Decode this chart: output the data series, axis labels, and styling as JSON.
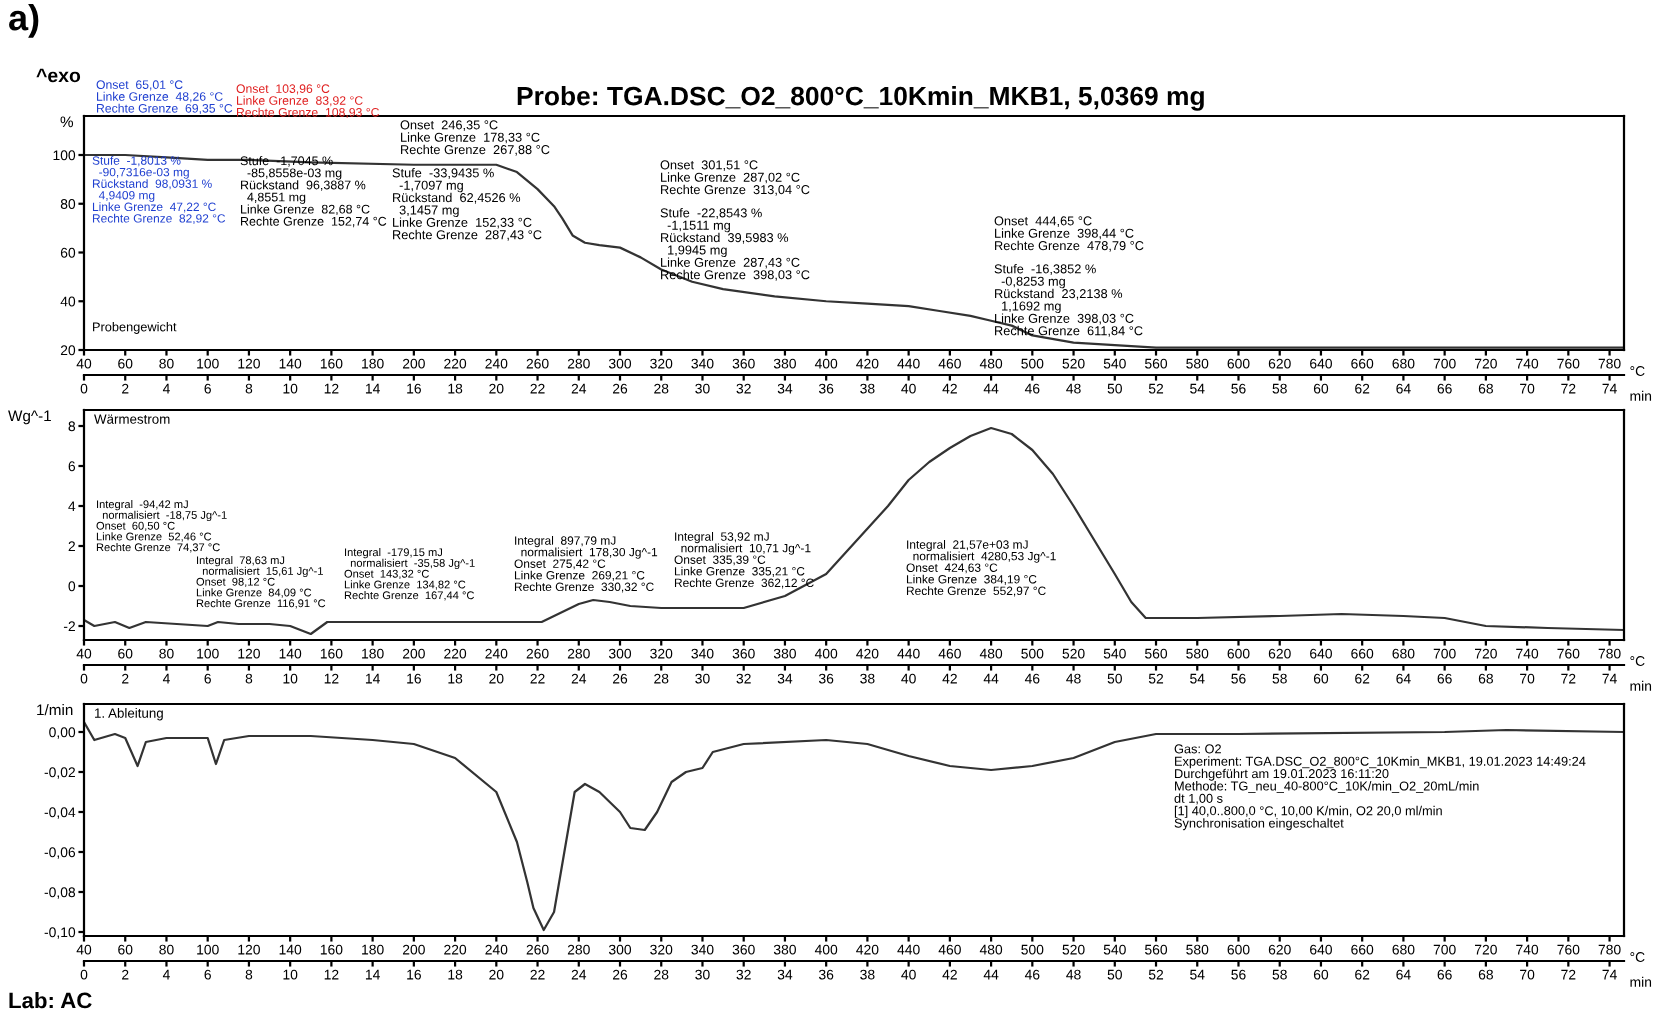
{
  "chart_data": [
    {
      "type": "line",
      "title": "Probe: TGA.DSC_O2_800°C_10Kmin_MKB1, 5,0369 mg",
      "ylabel": "%",
      "xlabel": "°C",
      "x2label": "min",
      "x": [
        40,
        60,
        80,
        100,
        105,
        120,
        150,
        200,
        240,
        250,
        260,
        268,
        272,
        277,
        283,
        290,
        300,
        310,
        320,
        335,
        350,
        375,
        400,
        420,
        440,
        455,
        470,
        480,
        490,
        500,
        520,
        540,
        560,
        611,
        700,
        787
      ],
      "series": [
        {
          "color": "#333333",
          "values": [
            100,
            100,
            99,
            98,
            98,
            98,
            97,
            96,
            96,
            93,
            86,
            79,
            74,
            67,
            64,
            63,
            62,
            58,
            53,
            48,
            45,
            42,
            40,
            39,
            38,
            36,
            34,
            32,
            30,
            26,
            23,
            22,
            21,
            21,
            21,
            21
          ]
        }
      ],
      "xlim": [
        40,
        787
      ],
      "xticks": [
        40,
        60,
        80,
        100,
        120,
        140,
        160,
        180,
        200,
        220,
        240,
        260,
        280,
        300,
        320,
        340,
        360,
        380,
        400,
        420,
        440,
        460,
        480,
        500,
        520,
        540,
        560,
        580,
        600,
        620,
        640,
        660,
        680,
        700,
        720,
        740,
        760,
        780
      ],
      "x2lim": [
        0,
        74.7
      ],
      "x2ticks": [
        0,
        2,
        4,
        6,
        8,
        10,
        12,
        14,
        16,
        18,
        20,
        22,
        24,
        26,
        28,
        30,
        32,
        34,
        36,
        38,
        40,
        42,
        44,
        46,
        48,
        50,
        52,
        54,
        56,
        58,
        60,
        62,
        64,
        66,
        68,
        70,
        72,
        74
      ],
      "ylim": [
        20,
        116
      ],
      "yticks": [
        20,
        40,
        60,
        80,
        100
      ],
      "grid": false,
      "legend": false,
      "annotations": [
        "a)",
        "^exo",
        "Onset  65,01 °C\nLinke Grenze  48,26 °C\nRechte Grenze  69,35 °C",
        "Onset  103,96 °C\nLinke Grenze  83,92 °C\nRechte Grenze  108,93 °C",
        "Onset  246,35 °C\nLinke Grenze  178,33 °C\nRechte Grenze  267,88 °C",
        "Stufe  -1,8013 %\n  -90,7316e-03 mg\nRückstand  98,0931 %\n  4,9409 mg\nLinke Grenze  47,22 °C\nRechte Grenze  82,92 °C",
        "Stufe  -1,7045 %\n  -85,8558e-03 mg\nRückstand  96,3887 %\n  4,8551 mg\nLinke Grenze  82,68 °C\nRechte Grenze  152,74 °C",
        "Stufe  -33,9435 %\n  -1,7097 mg\nRückstand  62,4526 %\n  3,1457 mg\nLinke Grenze  152,33 °C\nRechte Grenze  287,43 °C",
        "Onset  301,51 °C\nLinke Grenze  287,02 °C\nRechte Grenze  313,04 °C",
        "Stufe  -22,8543 %\n  -1,1511 mg\nRückstand  39,5983 %\n  1,9945 mg\nLinke Grenze  287,43 °C\nRechte Grenze  398,03 °C",
        "Onset  444,65 °C\nLinke Grenze  398,44 °C\nRechte Grenze  478,79 °C",
        "Stufe  -16,3852 %\n  -0,8253 mg\nRückstand  23,2138 %\n  1,1692 mg\nLinke Grenze  398,03 °C\nRechte Grenze  611,84 °C",
        "Probengewicht"
      ]
    },
    {
      "type": "line",
      "ylabel": "Wg^-1",
      "xlabel": "°C",
      "x2label": "min",
      "x": [
        40,
        45,
        55,
        62,
        70,
        85,
        100,
        105,
        115,
        130,
        140,
        150,
        158,
        170,
        200,
        240,
        262,
        270,
        280,
        287,
        295,
        305,
        320,
        340,
        360,
        380,
        400,
        415,
        430,
        440,
        450,
        460,
        470,
        480,
        490,
        500,
        510,
        520,
        530,
        540,
        548,
        555,
        580,
        620,
        650,
        680,
        700,
        720,
        750,
        787
      ],
      "series": [
        {
          "color": "#333333",
          "values": [
            -1.7,
            -2.0,
            -1.8,
            -2.1,
            -1.8,
            -1.9,
            -2.0,
            -1.8,
            -1.9,
            -1.9,
            -2.0,
            -2.4,
            -1.8,
            -1.8,
            -1.8,
            -1.8,
            -1.8,
            -1.4,
            -0.9,
            -0.7,
            -0.8,
            -1.0,
            -1.1,
            -1.1,
            -1.1,
            -0.5,
            0.6,
            2.3,
            4.0,
            5.3,
            6.2,
            6.9,
            7.5,
            7.9,
            7.6,
            6.8,
            5.6,
            4.0,
            2.3,
            0.6,
            -0.8,
            -1.6,
            -1.6,
            -1.5,
            -1.4,
            -1.5,
            -1.6,
            -2.0,
            -2.1,
            -2.2
          ]
        }
      ],
      "xlim": [
        40,
        787
      ],
      "xticks": [
        40,
        60,
        80,
        100,
        120,
        140,
        160,
        180,
        200,
        220,
        240,
        260,
        280,
        300,
        320,
        340,
        360,
        380,
        400,
        420,
        440,
        460,
        480,
        500,
        520,
        540,
        560,
        580,
        600,
        620,
        640,
        660,
        680,
        700,
        720,
        740,
        760,
        780
      ],
      "x2lim": [
        0,
        74.7
      ],
      "x2ticks": [
        0,
        2,
        4,
        6,
        8,
        10,
        12,
        14,
        16,
        18,
        20,
        22,
        24,
        26,
        28,
        30,
        32,
        34,
        36,
        38,
        40,
        42,
        44,
        46,
        48,
        50,
        52,
        54,
        56,
        58,
        60,
        62,
        64,
        66,
        68,
        70,
        72,
        74
      ],
      "ylim": [
        -2.7,
        8.8
      ],
      "yticks": [
        -2,
        0,
        2,
        4,
        6,
        8
      ],
      "grid": false,
      "legend": false,
      "annotations": [
        "Wärmestrom",
        "Integral  -94,42 mJ\n  normalisiert  -18,75 Jg^-1\nOnset  60,50 °C\nLinke Grenze  52,46 °C\nRechte Grenze  74,37 °C",
        "Integral  78,63 mJ\n  normalisiert  15,61 Jg^-1\nOnset  98,12 °C\nLinke Grenze  84,09 °C\nRechte Grenze  116,91 °C",
        "Integral  -179,15 mJ\n  normalisiert  -35,58 Jg^-1\nOnset  143,32 °C\nLinke Grenze  134,82 °C\nRechte Grenze  167,44 °C",
        "Integral  897,79 mJ\n  normalisiert  178,30 Jg^-1\nOnset  275,42 °C\nLinke Grenze  269,21 °C\nRechte Grenze  330,32 °C",
        "Integral  53,92 mJ\n  normalisiert  10,71 Jg^-1\nOnset  335,39 °C\nLinke Grenze  335,21 °C\nRechte Grenze  362,12 °C",
        "Integral  21,57e+03 mJ\n  normalisiert  4280,53 Jg^-1\nOnset  424,63 °C\nLinke Grenze  384,19 °C\nRechte Grenze  552,97 °C"
      ]
    },
    {
      "type": "line",
      "ylabel": "1/min",
      "xlabel": "°C",
      "x2label": "min",
      "x": [
        40,
        45,
        55,
        60,
        66,
        70,
        80,
        100,
        104,
        108,
        120,
        150,
        180,
        200,
        220,
        240,
        250,
        255,
        258,
        263,
        268,
        273,
        278,
        283,
        290,
        300,
        305,
        312,
        318,
        325,
        332,
        340,
        345,
        360,
        400,
        420,
        440,
        460,
        480,
        500,
        520,
        540,
        560,
        600,
        700,
        730,
        787
      ],
      "series": [
        {
          "color": "#333333",
          "values": [
            0.005,
            -0.004,
            -0.001,
            -0.003,
            -0.017,
            -0.005,
            -0.003,
            -0.003,
            -0.016,
            -0.004,
            -0.002,
            -0.002,
            -0.004,
            -0.006,
            -0.013,
            -0.03,
            -0.055,
            -0.075,
            -0.088,
            -0.099,
            -0.09,
            -0.06,
            -0.03,
            -0.026,
            -0.03,
            -0.04,
            -0.048,
            -0.049,
            -0.04,
            -0.025,
            -0.02,
            -0.018,
            -0.01,
            -0.006,
            -0.004,
            -0.006,
            -0.012,
            -0.017,
            -0.019,
            -0.017,
            -0.013,
            -0.005,
            -0.001,
            -0.001,
            0.0,
            0.001,
            0.0
          ]
        }
      ],
      "xlim": [
        40,
        787
      ],
      "xticks": [
        40,
        60,
        80,
        100,
        120,
        140,
        160,
        180,
        200,
        220,
        240,
        260,
        280,
        300,
        320,
        340,
        360,
        380,
        400,
        420,
        440,
        460,
        480,
        500,
        520,
        540,
        560,
        580,
        600,
        620,
        640,
        660,
        680,
        700,
        720,
        740,
        760,
        780
      ],
      "x2lim": [
        0,
        74.7
      ],
      "x2ticks": [
        0,
        2,
        4,
        6,
        8,
        10,
        12,
        14,
        16,
        18,
        20,
        22,
        24,
        26,
        28,
        30,
        32,
        34,
        36,
        38,
        40,
        42,
        44,
        46,
        48,
        50,
        52,
        54,
        56,
        58,
        60,
        62,
        64,
        66,
        68,
        70,
        72,
        74
      ],
      "ylim": [
        -0.102,
        0.014
      ],
      "yticks": [
        {
          "value": 0,
          "label": "0,00"
        },
        {
          "value": -0.02,
          "label": "-0,02"
        },
        {
          "value": -0.04,
          "label": "-0,04"
        },
        {
          "value": -0.06,
          "label": "-0,06"
        },
        {
          "value": -0.08,
          "label": "-0,08"
        },
        {
          "value": -0.1,
          "label": "-0,10"
        }
      ],
      "grid": false,
      "legend": false,
      "annotations": [
        "1. Ableitung",
        "Gas: O2\nExperiment: TGA.DSC_O2_800°C_10Kmin_MKB1, 19.01.2023 14:49:24\nDurchgeführt am 19.01.2023 16:11:20\nMethode: TG_neu_40-800°C_10K/min_O2_20mL/min\ndt 1,00 s\n[1] 40,0..800,0 °C, 10,00 K/min, O2 20,0 ml/min\nSynchronisation eingeschaltet",
        "Lab: AC"
      ]
    }
  ]
}
